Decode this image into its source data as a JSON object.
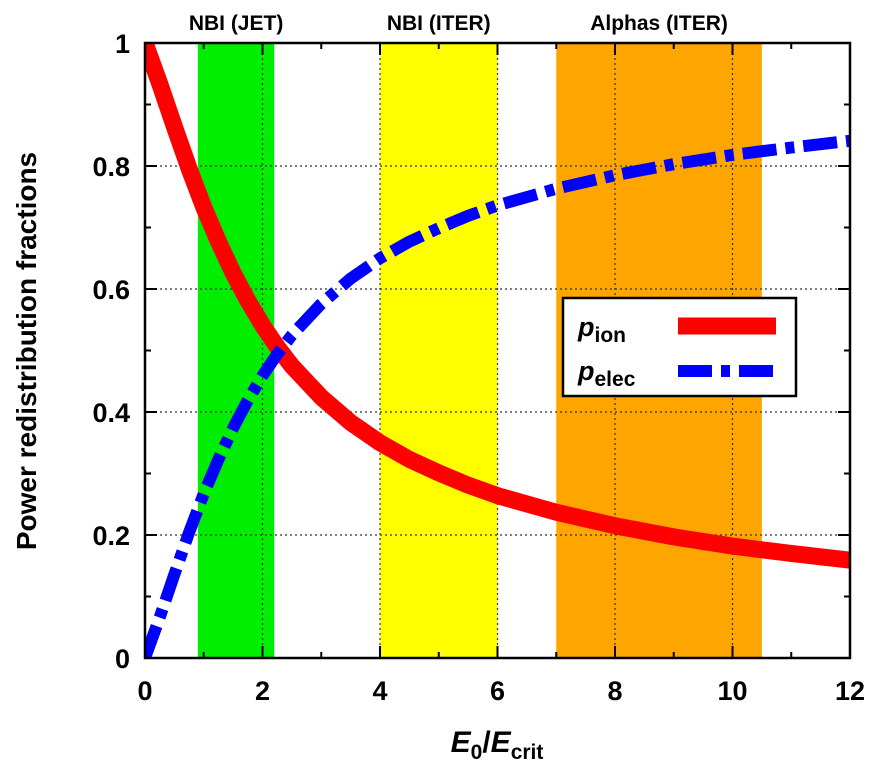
{
  "chart_data": {
    "type": "line",
    "xlabel": {
      "main": "E",
      "sub1": "0",
      "slash": "/",
      "main2": "E",
      "sub2": "crit"
    },
    "ylabel": "Power redistribution fractions",
    "xlim": [
      0,
      12
    ],
    "ylim": [
      0,
      1
    ],
    "x_ticks": [
      "0",
      "2",
      "4",
      "6",
      "8",
      "10",
      "12"
    ],
    "y_ticks": [
      "0",
      "0.2",
      "0.4",
      "0.6",
      "0.8",
      "1"
    ],
    "grid": "dotted",
    "bands": [
      {
        "label": "NBI (JET)",
        "x_range": [
          0.9,
          2.2
        ],
        "color": "#00ee00"
      },
      {
        "label": "NBI (ITER)",
        "x_range": [
          4.0,
          6.0
        ],
        "color": "#ffff00"
      },
      {
        "label": "Alphas (ITER)",
        "x_range": [
          7.0,
          10.5
        ],
        "color": "#ffa500"
      }
    ],
    "series": [
      {
        "name_main": "p",
        "name_sub": "ion",
        "style": "solid",
        "color": "#ff0000",
        "x": [
          0,
          0.25,
          0.5,
          0.75,
          1,
          1.25,
          1.5,
          1.75,
          2,
          2.25,
          2.5,
          3,
          3.5,
          4,
          4.5,
          5,
          5.5,
          6,
          7,
          8,
          9,
          10,
          11,
          12
        ],
        "y": [
          1.0,
          0.934,
          0.864,
          0.796,
          0.733,
          0.677,
          0.626,
          0.581,
          0.541,
          0.506,
          0.475,
          0.424,
          0.383,
          0.35,
          0.323,
          0.301,
          0.281,
          0.264,
          0.237,
          0.215,
          0.197,
          0.182,
          0.17,
          0.159
        ]
      },
      {
        "name_main": "p",
        "name_sub": "elec",
        "style": "dash-dot",
        "color": "#0000ff",
        "x": [
          0,
          0.25,
          0.5,
          0.75,
          1,
          1.25,
          1.5,
          1.75,
          2,
          2.25,
          2.5,
          3,
          3.5,
          4,
          4.5,
          5,
          5.5,
          6,
          7,
          8,
          9,
          10,
          11,
          12
        ],
        "y": [
          0.0,
          0.066,
          0.136,
          0.204,
          0.267,
          0.323,
          0.374,
          0.419,
          0.459,
          0.494,
          0.525,
          0.576,
          0.617,
          0.65,
          0.677,
          0.699,
          0.719,
          0.736,
          0.763,
          0.785,
          0.803,
          0.818,
          0.83,
          0.841
        ]
      }
    ],
    "legend_position": "center-right"
  }
}
